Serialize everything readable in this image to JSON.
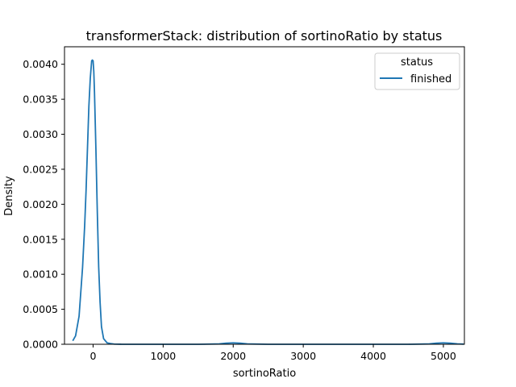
{
  "chart_data": {
    "type": "line",
    "title": "transformerStack: distribution of sortinoRatio by status",
    "xlabel": "sortinoRatio",
    "ylabel": "Density",
    "xlim": [
      -408,
      5300
    ],
    "ylim": [
      0,
      0.00425
    ],
    "x_ticks": [
      0,
      1000,
      2000,
      3000,
      4000,
      5000
    ],
    "y_ticks": [
      0.0,
      0.0005,
      0.001,
      0.0015,
      0.002,
      0.0025,
      0.003,
      0.0035,
      0.004
    ],
    "x_tick_labels": [
      "0",
      "1000",
      "2000",
      "3000",
      "4000",
      "5000"
    ],
    "y_tick_labels": [
      "0.0000",
      "0.0005",
      "0.0010",
      "0.0015",
      "0.0020",
      "0.0025",
      "0.0030",
      "0.0035",
      "0.0040"
    ],
    "grid": false,
    "legend": {
      "title": "status",
      "placement": "top-right",
      "entries": [
        "finished"
      ]
    },
    "series": [
      {
        "name": "finished",
        "color": "#1f77b4",
        "x": [
          -290,
          -250,
          -200,
          -150,
          -120,
          -100,
          -80,
          -60,
          -40,
          -20,
          -10,
          0,
          10,
          20,
          40,
          60,
          80,
          100,
          120,
          150,
          200,
          250,
          300,
          400,
          600,
          1000,
          1500,
          1800,
          1900,
          2000,
          2100,
          2200,
          2500,
          3000,
          3500,
          4000,
          4500,
          4800,
          4900,
          5000,
          5100,
          5200,
          5290
        ],
        "y": [
          5e-05,
          0.00012,
          0.0004,
          0.0011,
          0.0017,
          0.0022,
          0.0028,
          0.0034,
          0.0038,
          0.00405,
          0.00406,
          0.00405,
          0.0039,
          0.0036,
          0.0028,
          0.0019,
          0.0011,
          0.0006,
          0.00025,
          8e-05,
          2e-05,
          1e-05,
          3e-06,
          5e-07,
          0,
          0,
          0,
          5e-06,
          1.5e-05,
          2e-05,
          1.5e-05,
          5e-06,
          0,
          0,
          0,
          0,
          0,
          5e-06,
          1.5e-05,
          2e-05,
          1.5e-05,
          6e-06,
          2e-06
        ]
      }
    ]
  }
}
